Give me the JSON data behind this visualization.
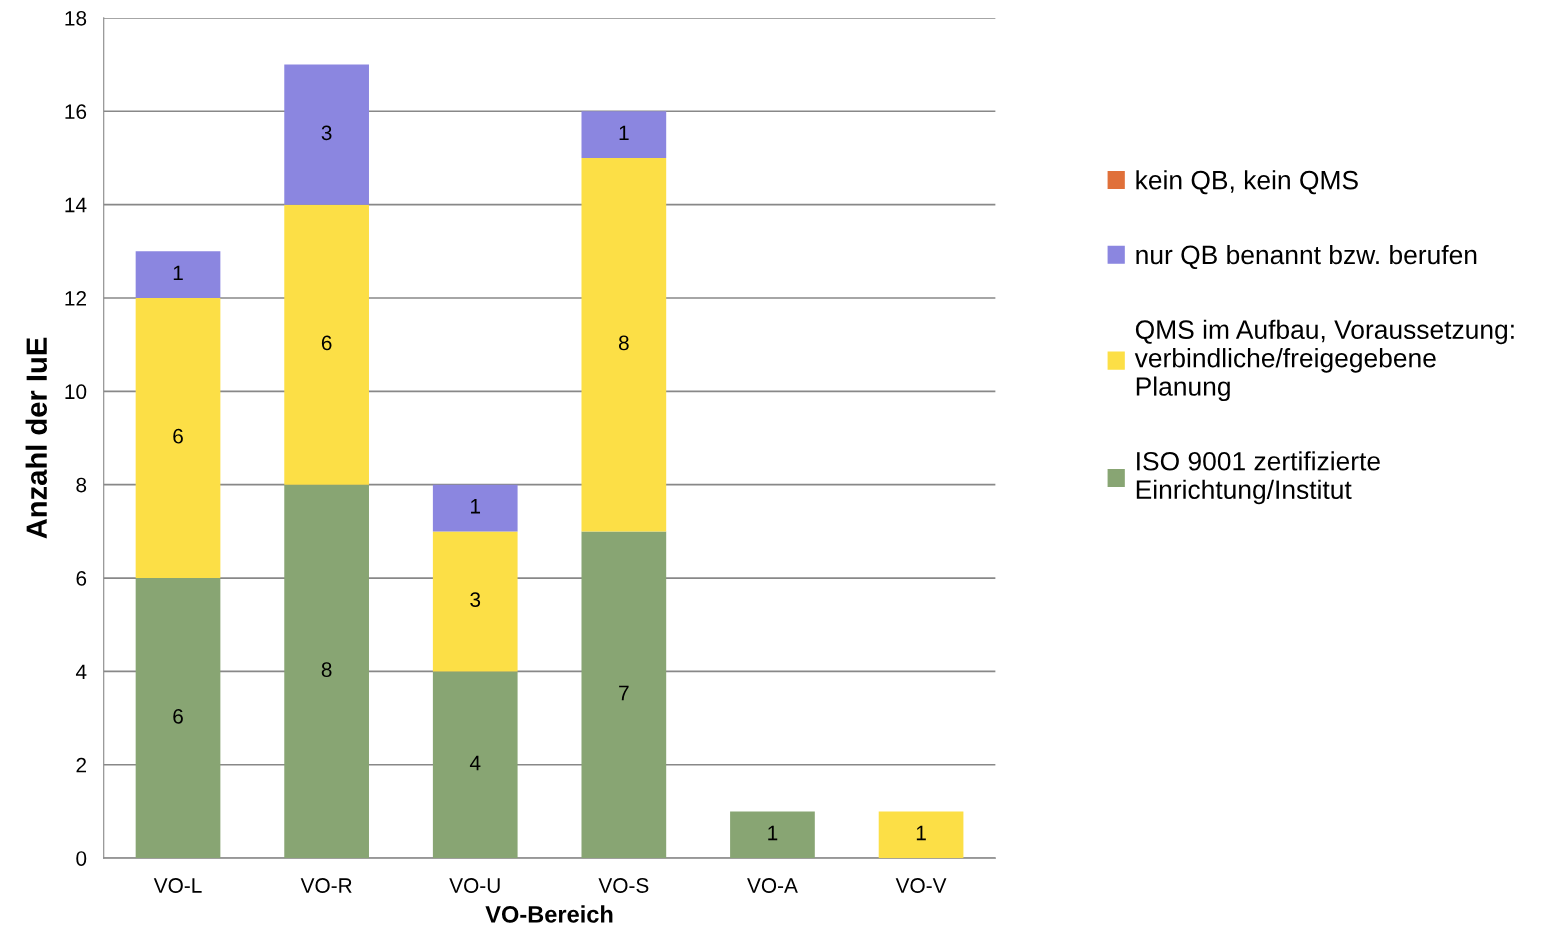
{
  "chart_data": {
    "type": "bar",
    "stacked": true,
    "xlabel": "VO-Bereich",
    "ylabel": "Anzahl der IuE",
    "categories": [
      "VO-L",
      "VO-R",
      "VO-U",
      "VO-S",
      "VO-A",
      "VO-V"
    ],
    "series": [
      {
        "name": "ISO 9001 zertifizierte\nEinrichtung/Institut",
        "color": "#88a573",
        "values": [
          6,
          8,
          4,
          7,
          1,
          0
        ],
        "value_labels": [
          "6",
          "8",
          "4",
          "7",
          "1",
          null
        ]
      },
      {
        "name": "QMS im Aufbau, Voraussetzung:\nverbindliche/freigegebene\nPlanung",
        "color": "#fcdf46",
        "values": [
          6,
          6,
          3,
          8,
          0,
          1
        ],
        "value_labels": [
          "6",
          "6",
          "3",
          "8",
          null,
          "1"
        ]
      },
      {
        "name": "nur QB benannt bzw. berufen",
        "color": "#8b86e0",
        "values": [
          1,
          3,
          1,
          1,
          0,
          0
        ],
        "value_labels": [
          "1",
          "3",
          "1",
          "1",
          null,
          null
        ]
      },
      {
        "name": "kein QB, kein QMS",
        "color": "#e0703a",
        "values": [
          0,
          0,
          0,
          0,
          0,
          0
        ],
        "value_labels": [
          null,
          null,
          null,
          null,
          null,
          null
        ]
      }
    ],
    "ylim": [
      0,
      18
    ],
    "yticks": [
      0,
      2,
      4,
      6,
      8,
      10,
      12,
      14,
      16,
      18
    ],
    "grid": "y",
    "legend": "right"
  }
}
